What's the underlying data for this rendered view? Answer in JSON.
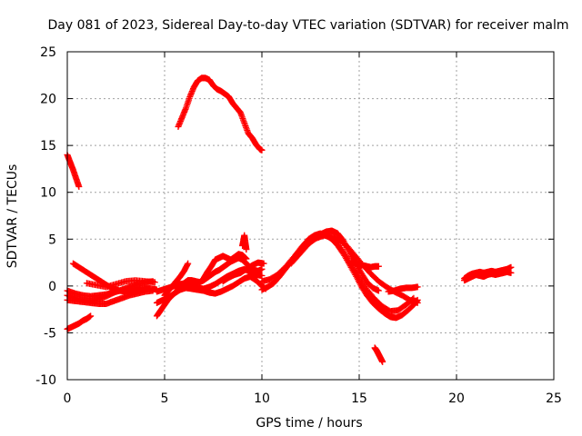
{
  "chart_data": {
    "type": "scatter",
    "title": "Day 081 of 2023, Sidereal Day-to-day VTEC variation (SDTVAR) for receiver malm",
    "xlabel": "GPS time / hours",
    "ylabel": "SDTVAR / TECUs",
    "xlim": [
      0,
      25
    ],
    "ylim": [
      -10,
      25
    ],
    "xticks": [
      0,
      5,
      10,
      15,
      20,
      25
    ],
    "yticks": [
      -10,
      -5,
      0,
      5,
      10,
      15,
      20,
      25
    ],
    "xtick_labels": [
      "0",
      "5",
      "10",
      "15",
      "20",
      "25"
    ],
    "ytick_labels": [
      "-10",
      "-5",
      "0",
      "5",
      "10",
      "15",
      "20",
      "25"
    ],
    "grid": true,
    "marker": "+",
    "color": "#ff0000",
    "series": [
      {
        "name": "s1",
        "x": [
          0.0,
          0.15,
          0.3,
          0.45,
          0.6
        ],
        "y": [
          14.0,
          13.2,
          12.4,
          11.5,
          10.6
        ]
      },
      {
        "name": "s2",
        "x": [
          5.7,
          5.9,
          6.1,
          6.3,
          6.5,
          6.7,
          6.9,
          7.1,
          7.3,
          7.5,
          7.7,
          7.9,
          8.1,
          8.3,
          8.5,
          8.7,
          8.9,
          9.1,
          9.3,
          9.5,
          9.7,
          9.9,
          10.0
        ],
        "y": [
          17.0,
          18.0,
          19.0,
          20.2,
          21.2,
          21.9,
          22.2,
          22.2,
          22.0,
          21.4,
          21.0,
          20.8,
          20.5,
          20.2,
          19.5,
          19.0,
          18.5,
          17.4,
          16.3,
          15.8,
          15.1,
          14.6,
          14.5
        ]
      },
      {
        "name": "s3",
        "x": [
          0.0,
          0.2,
          0.4,
          0.6,
          0.8,
          1.0,
          1.2
        ],
        "y": [
          -4.6,
          -4.4,
          -4.2,
          -4.0,
          -3.7,
          -3.5,
          -3.2
        ]
      },
      {
        "name": "s4",
        "x": [
          0.0,
          0.4,
          0.8,
          1.2,
          1.6,
          2.0,
          2.4,
          2.8,
          3.2,
          3.6,
          4.0,
          4.4,
          4.6
        ],
        "y": [
          -0.5,
          -0.8,
          -1.0,
          -1.1,
          -1.0,
          -0.9,
          -0.6,
          -0.5,
          -0.3,
          -0.2,
          -0.2,
          -0.3,
          -0.4
        ]
      },
      {
        "name": "s5",
        "x": [
          0.0,
          0.4,
          0.8,
          1.2,
          1.6,
          2.0,
          2.4,
          2.8,
          3.2,
          3.6,
          4.0,
          4.4
        ],
        "y": [
          -1.5,
          -1.6,
          -1.7,
          -1.8,
          -1.9,
          -1.9,
          -1.6,
          -1.3,
          -1.0,
          -0.8,
          -0.6,
          -0.5
        ]
      },
      {
        "name": "s6",
        "x": [
          0.0,
          0.4,
          0.8,
          1.2,
          1.6,
          2.0,
          2.4,
          2.8,
          3.2,
          3.6,
          4.0,
          4.4
        ],
        "y": [
          -1.0,
          -1.3,
          -1.5,
          -1.6,
          -1.4,
          -1.1,
          -0.7,
          -0.4,
          -0.1,
          0.2,
          0.4,
          0.5
        ]
      },
      {
        "name": "s7",
        "x": [
          0.3,
          0.6,
          0.9,
          1.2,
          1.5,
          1.8,
          2.1,
          2.4,
          2.7,
          3.0,
          3.3,
          3.6,
          3.9,
          4.2
        ],
        "y": [
          2.4,
          2.0,
          1.6,
          1.2,
          0.8,
          0.4,
          0.0,
          -0.3,
          -0.5,
          -0.6,
          -0.7,
          -0.6,
          -0.4,
          -0.3
        ]
      },
      {
        "name": "s8",
        "x": [
          1.0,
          1.5,
          2.0,
          2.5,
          3.0,
          3.5,
          4.0,
          4.5
        ],
        "y": [
          0.3,
          0.1,
          -0.1,
          0.2,
          0.5,
          0.6,
          0.5,
          0.4
        ]
      },
      {
        "name": "s9",
        "x": [
          4.6,
          4.8,
          5.0,
          5.2,
          5.4,
          5.6,
          5.8,
          6.0,
          6.2,
          6.4,
          6.6,
          6.8,
          7.0,
          7.2,
          7.4,
          7.6,
          7.8,
          8.0,
          8.2,
          8.4,
          8.6,
          8.8,
          9.0,
          9.2,
          9.4,
          9.6,
          9.8,
          10.0
        ],
        "y": [
          -3.2,
          -2.6,
          -2.0,
          -1.4,
          -1.0,
          -0.6,
          -0.1,
          0.3,
          0.6,
          0.6,
          0.5,
          0.4,
          0.6,
          0.9,
          1.2,
          1.5,
          1.7,
          2.0,
          2.3,
          2.6,
          2.8,
          3.0,
          2.8,
          2.4,
          2.0,
          1.7,
          1.6,
          1.8
        ]
      },
      {
        "name": "s10",
        "x": [
          4.6,
          4.9,
          5.2,
          5.5,
          5.8,
          6.1,
          6.4,
          6.7,
          7.0,
          7.3,
          7.6,
          7.9,
          8.2,
          8.5,
          8.8,
          9.1,
          9.4,
          9.7,
          10.0
        ],
        "y": [
          -0.6,
          -0.4,
          -0.2,
          0.0,
          0.2,
          0.3,
          0.1,
          -0.2,
          -0.3,
          -0.1,
          0.2,
          0.6,
          1.0,
          1.3,
          1.6,
          1.8,
          1.5,
          1.2,
          1.1
        ]
      },
      {
        "name": "s11",
        "x": [
          4.6,
          4.9,
          5.2,
          5.5,
          5.8,
          6.1,
          6.4,
          6.7,
          7.0,
          7.3,
          7.6,
          7.9,
          8.2,
          8.5,
          8.8,
          9.1,
          9.4,
          9.7,
          10.0,
          10.2
        ],
        "y": [
          -1.8,
          -1.5,
          -1.2,
          -0.8,
          -0.4,
          -0.2,
          -0.3,
          -0.4,
          -0.5,
          -0.7,
          -0.8,
          -0.6,
          -0.3,
          0.0,
          0.4,
          0.8,
          1.0,
          0.6,
          0.0,
          -0.3
        ]
      },
      {
        "name": "s12",
        "x": [
          5.0,
          5.2,
          5.4,
          5.6,
          5.8,
          6.0,
          6.2
        ],
        "y": [
          -1.0,
          -0.5,
          0.0,
          0.5,
          1.0,
          1.6,
          2.4
        ]
      },
      {
        "name": "s13",
        "x": [
          7.0,
          7.2,
          7.4,
          7.6,
          7.8,
          8.0,
          8.2,
          8.4,
          8.6,
          8.8,
          9.0,
          9.2
        ],
        "y": [
          0.8,
          1.5,
          2.1,
          2.8,
          3.0,
          3.2,
          3.0,
          2.8,
          3.1,
          3.4,
          3.3,
          2.9
        ]
      },
      {
        "name": "s14",
        "x": [
          8.0,
          8.3,
          8.6,
          8.9,
          9.2,
          9.5,
          9.8,
          10.1
        ],
        "y": [
          0.5,
          0.9,
          1.2,
          1.4,
          1.8,
          2.2,
          2.5,
          2.4
        ]
      },
      {
        "name": "s15",
        "x": [
          9.0,
          9.05,
          9.1,
          9.15,
          9.2
        ],
        "y": [
          4.3,
          4.8,
          5.4,
          4.6,
          3.9
        ]
      },
      {
        "name": "s16",
        "x": [
          10.0,
          10.3,
          10.6,
          10.9,
          11.2,
          11.5,
          11.8,
          12.1,
          12.4,
          12.7,
          13.0,
          13.3,
          13.6,
          13.9,
          14.2,
          14.5,
          14.8,
          15.1,
          15.4,
          15.7,
          16.0,
          16.3,
          16.6,
          16.9,
          17.2,
          17.5,
          17.8,
          18.0
        ],
        "y": [
          -0.4,
          -0.1,
          0.3,
          1.0,
          1.8,
          2.6,
          3.5,
          4.3,
          5.0,
          5.4,
          5.6,
          5.4,
          5.0,
          4.3,
          3.4,
          2.3,
          1.2,
          0.0,
          -1.0,
          -1.8,
          -2.4,
          -2.9,
          -3.3,
          -3.4,
          -3.1,
          -2.6,
          -2.0,
          -1.5
        ]
      },
      {
        "name": "s17",
        "x": [
          10.0,
          10.4,
          10.8,
          11.2,
          11.6,
          12.0,
          12.4,
          12.8,
          13.2,
          13.6,
          14.0,
          14.4,
          14.8,
          15.2,
          15.6,
          16.0,
          16.4,
          16.8,
          17.2,
          17.6,
          18.0
        ],
        "y": [
          0.5,
          0.7,
          1.2,
          2.0,
          3.0,
          3.9,
          4.6,
          5.1,
          5.4,
          5.3,
          4.9,
          4.2,
          3.2,
          2.2,
          1.3,
          0.5,
          -0.1,
          -0.6,
          -1.0,
          -1.5,
          -1.8
        ]
      },
      {
        "name": "s18",
        "x": [
          11.5,
          11.8,
          12.1,
          12.4,
          12.7,
          13.0,
          13.3,
          13.6,
          13.9,
          14.2,
          14.5,
          14.8,
          15.1,
          15.4,
          15.7,
          16.0
        ],
        "y": [
          2.4,
          3.1,
          3.8,
          4.5,
          5.0,
          5.5,
          5.8,
          5.9,
          5.6,
          4.8,
          3.6,
          2.5,
          1.4,
          0.4,
          -0.2,
          -0.5
        ]
      },
      {
        "name": "s19",
        "x": [
          13.0,
          13.4,
          13.8,
          14.2,
          14.6,
          15.0,
          15.4,
          15.8,
          16.2,
          16.6,
          17.0,
          17.4,
          17.8
        ],
        "y": [
          5.5,
          5.3,
          4.8,
          3.6,
          2.2,
          0.9,
          -0.4,
          -1.4,
          -2.2,
          -2.7,
          -2.6,
          -2.0,
          -1.3
        ]
      },
      {
        "name": "s20",
        "x": [
          14.6,
          14.8,
          15.0,
          15.2,
          15.4,
          15.6,
          15.8,
          16.0
        ],
        "y": [
          2.6,
          2.4,
          2.3,
          2.2,
          2.1,
          2.0,
          2.1,
          2.1
        ]
      },
      {
        "name": "s21",
        "x": [
          16.5,
          16.8,
          17.1,
          17.4,
          17.7,
          18.0
        ],
        "y": [
          -0.6,
          -0.5,
          -0.3,
          -0.2,
          -0.2,
          -0.1
        ]
      },
      {
        "name": "s22",
        "x": [
          15.8,
          15.9,
          16.0,
          16.1,
          16.2
        ],
        "y": [
          -6.6,
          -6.9,
          -7.3,
          -7.7,
          -8.1
        ]
      },
      {
        "name": "s23",
        "x": [
          20.4,
          20.6,
          20.8,
          21.0,
          21.2,
          21.4,
          21.6,
          21.8,
          22.0,
          22.2,
          22.4,
          22.6,
          22.8
        ],
        "y": [
          0.8,
          1.1,
          1.3,
          1.4,
          1.5,
          1.4,
          1.5,
          1.6,
          1.5,
          1.6,
          1.7,
          1.8,
          2.0
        ]
      },
      {
        "name": "s24",
        "x": [
          20.4,
          20.6,
          20.8,
          21.0,
          21.2,
          21.4,
          21.6,
          21.8,
          22.0,
          22.2,
          22.4,
          22.6,
          22.8
        ],
        "y": [
          0.6,
          0.8,
          1.0,
          1.2,
          1.1,
          1.0,
          1.2,
          1.3,
          1.2,
          1.3,
          1.4,
          1.5,
          1.4
        ]
      }
    ]
  }
}
